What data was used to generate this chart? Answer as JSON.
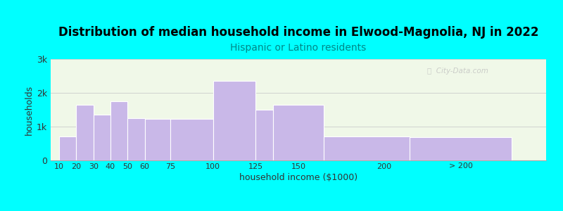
{
  "title": "Distribution of median household income in Elwood-Magnolia, NJ in 2022",
  "subtitle": "Hispanic or Latino residents",
  "xlabel": "household income ($1000)",
  "ylabel": "households",
  "bar_lefts": [
    10,
    20,
    30,
    40,
    50,
    60,
    75,
    100,
    125,
    135,
    165,
    215
  ],
  "bar_widths": [
    10,
    10,
    10,
    10,
    10,
    15,
    25,
    25,
    10,
    30,
    50,
    60
  ],
  "values": [
    700,
    1650,
    1350,
    1750,
    1250,
    1230,
    1220,
    2350,
    1500,
    1650,
    700,
    680
  ],
  "xtick_positions": [
    10,
    20,
    30,
    40,
    50,
    60,
    75,
    100,
    125,
    150,
    200
  ],
  "xtick_labels": [
    "10",
    "20",
    "30",
    "40",
    "50",
    "60",
    "75",
    "100",
    "125",
    "150",
    "200"
  ],
  "xlim": [
    5,
    295
  ],
  "bar_color": "#c9b8e8",
  "bar_edge_color": "#ffffff",
  "bg_color": "#00ffff",
  "plot_bg_color": "#f0f8e8",
  "title_color": "#000000",
  "subtitle_color": "#008888",
  "ytick_labels": [
    "0",
    "1k",
    "2k",
    "3k"
  ],
  "ytick_values": [
    0,
    1000,
    2000,
    3000
  ],
  "ylim": [
    0,
    3000
  ],
  "watermark": "ⓘ  City-Data.com",
  "title_fontsize": 12,
  "subtitle_fontsize": 10,
  "xlabel_fontsize": 9,
  "ylabel_fontsize": 9
}
